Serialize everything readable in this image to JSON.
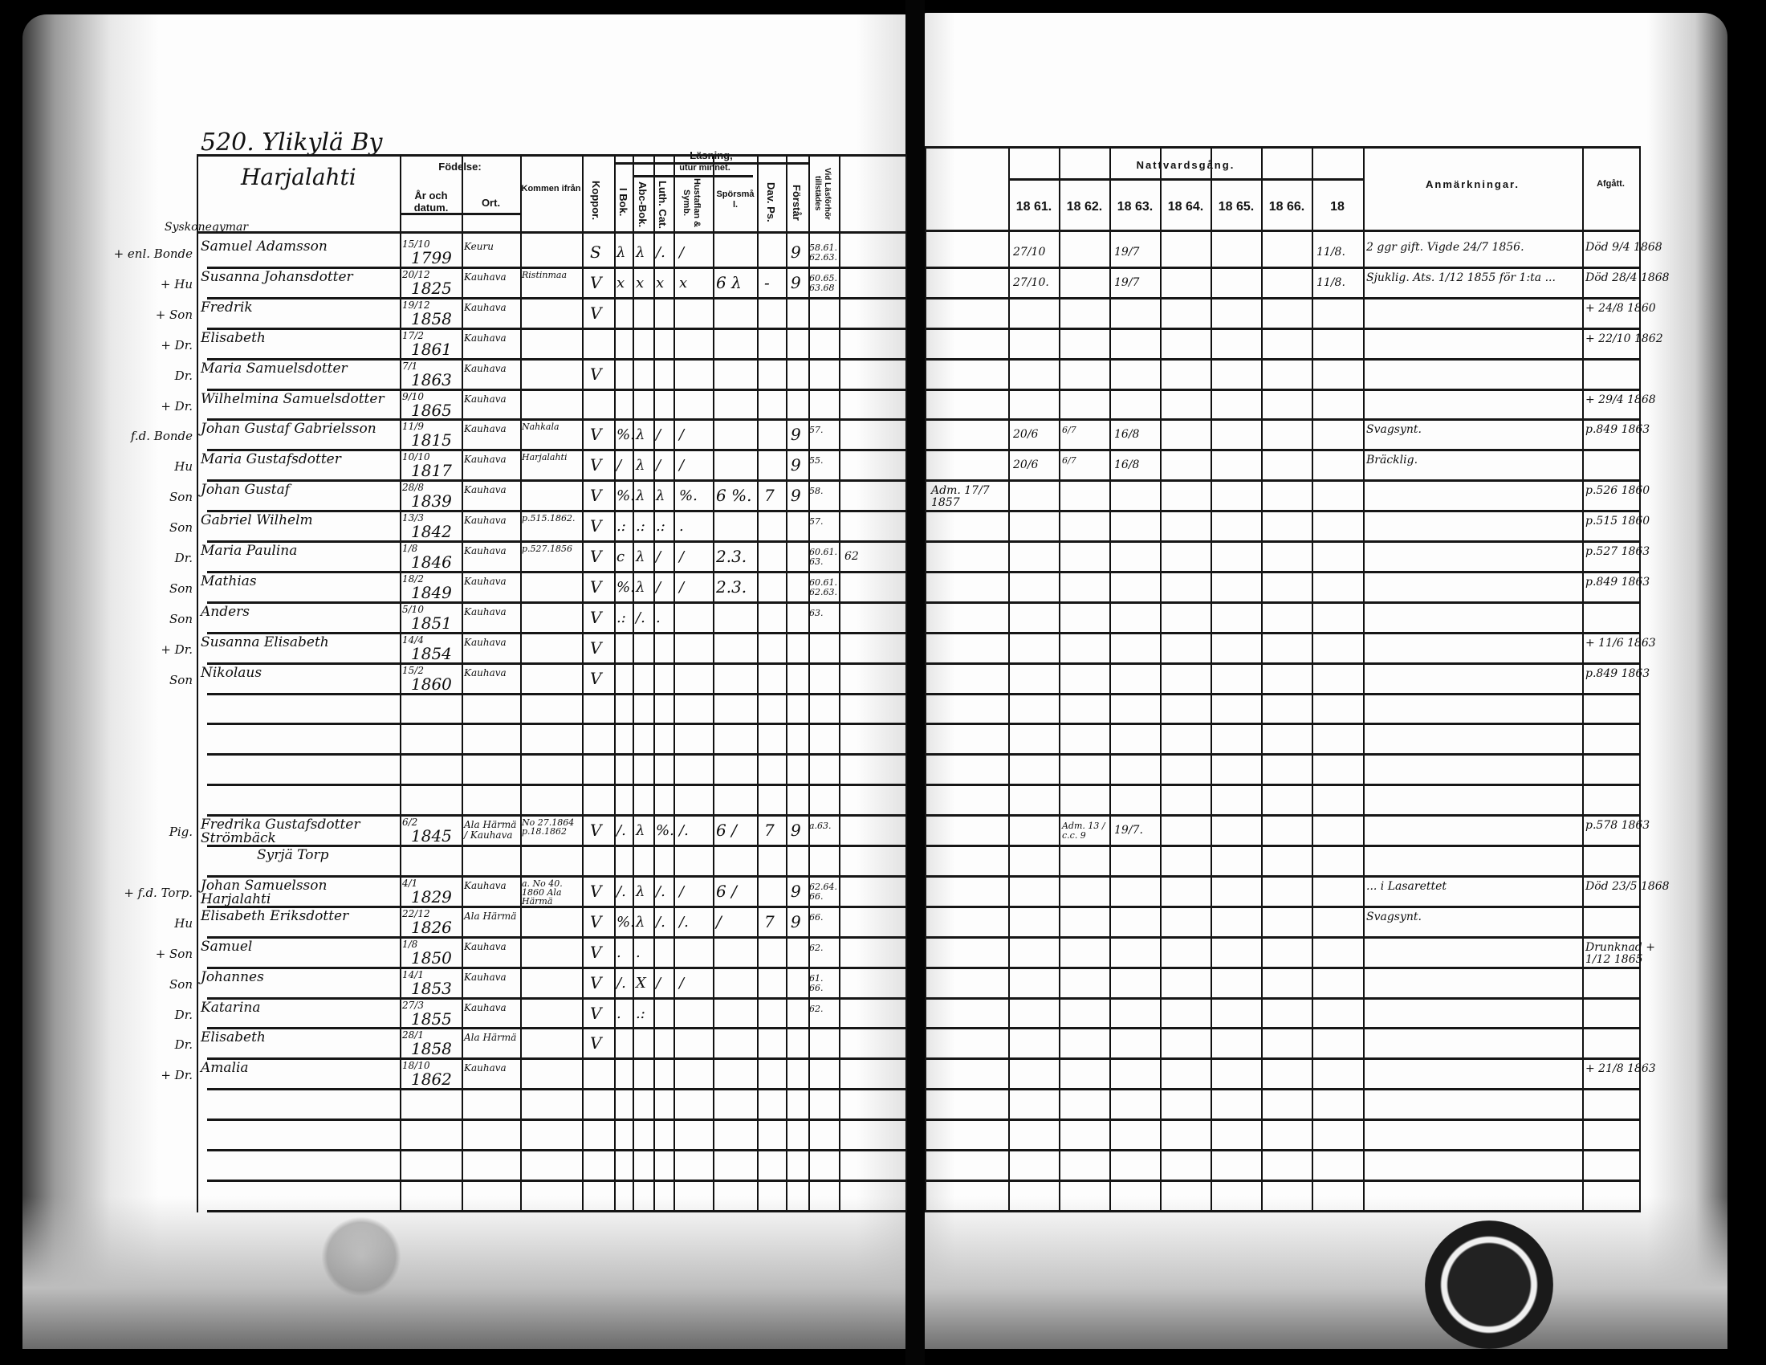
{
  "left": {
    "title": "520. Ylikylä By",
    "village": "Harjalahti",
    "section_heading": "Syskonegymar",
    "headers": {
      "fodelse": "Födelse:",
      "ar_datum": "År och datum.",
      "ort": "Ort.",
      "kommen": "Kommen ifrån",
      "koppor": "Koppor.",
      "lasning": "Läsning,",
      "utur_minnet": "utur minnet.",
      "i_bok": "I Bok.",
      "abc_bok": "Abc-Bok.",
      "luth_cat": "Luth. Cat.",
      "hustaflan": "Hustaflan & Symb.",
      "sporsmal": "Spörsmål.",
      "dav_ps": "Dav. Ps.",
      "forstar": "Förstår",
      "lasforhor": "Vid Läsförhör tillstädes"
    },
    "rows": [
      {
        "rel": "+ enl. Bonde",
        "name": "Samuel Adamsson",
        "date": "15/10",
        "year": "1799",
        "place": "Keuru",
        "kop": "S",
        "ibok": "λ",
        "abc": "λ",
        "luth": "/.",
        "husf": "/",
        "forst": "9",
        "lasf": "58.61. 62.63."
      },
      {
        "rel": "+ Hu",
        "name": "Susanna Johansdotter",
        "date": "20/12",
        "year": "1825",
        "place": "Kauhava",
        "from": "Ristinmaa",
        "kop": "V",
        "ibok": "x",
        "abc": "x",
        "luth": "x",
        "husf": "x",
        "spors": "6 λ",
        "dav": "-",
        "forst": "9",
        "lasf": "60.65. 63.68"
      },
      {
        "rel": "+ Son",
        "name": "Fredrik",
        "date": "19/12",
        "year": "1858",
        "place": "Kauhava",
        "kop": "V"
      },
      {
        "rel": "+ Dr.",
        "name": "Elisabeth",
        "date": "17/2",
        "year": "1861",
        "place": "Kauhava"
      },
      {
        "rel": "Dr.",
        "name": "Maria Samuelsdotter",
        "date": "7/1",
        "year": "1863",
        "place": "Kauhava",
        "kop": "V"
      },
      {
        "rel": "+ Dr.",
        "name": "Wilhelmina Samuelsdotter",
        "date": "9/10",
        "year": "1865",
        "place": "Kauhava"
      },
      {
        "rel": "f.d. Bonde",
        "name": "Johan Gustaf Gabrielsson",
        "date": "11/9",
        "year": "1815",
        "place": "Kauhava",
        "from": "Nahkala",
        "kop": "V",
        "ibok": "%.",
        "abc": "λ",
        "luth": "/",
        "husf": "/",
        "forst": "9",
        "lasf": "57."
      },
      {
        "rel": "Hu",
        "name": "Maria Gustafsdotter",
        "date": "10/10",
        "year": "1817",
        "place": "Kauhava",
        "from": "Harjalahti",
        "kop": "V",
        "ibok": "/",
        "abc": "λ",
        "luth": "/",
        "husf": "/",
        "forst": "9",
        "lasf": "55."
      },
      {
        "rel": "Son",
        "name": "Johan Gustaf",
        "date": "28/8",
        "year": "1839",
        "place": "Kauhava",
        "kop": "V",
        "ibok": "%.",
        "abc": "λ",
        "luth": "λ",
        "husf": "%.",
        "spors": "6 %.",
        "dav": "7",
        "forst": "9",
        "lasf": "58.",
        "extra": ""
      },
      {
        "rel": "Son",
        "name": "Gabriel Wilhelm",
        "date": "13/3",
        "year": "1842",
        "place": "Kauhava",
        "from": "p.515.1862.",
        "kop": "V",
        "ibok": ".:",
        "abc": ".:",
        "luth": ".:",
        "husf": ".",
        "lasf": "57."
      },
      {
        "rel": "Dr.",
        "name": "Maria Paulina",
        "date": "1/8",
        "year": "1846",
        "place": "Kauhava",
        "from": "p.527.1856",
        "kop": "V",
        "ibok": "c",
        "abc": "λ",
        "luth": "/",
        "husf": "/",
        "spors": "2.3.",
        "lasf": "60.61. 63.",
        "extra": "62"
      },
      {
        "rel": "Son",
        "name": "Mathias",
        "date": "18/2",
        "year": "1849",
        "place": "Kauhava",
        "kop": "V",
        "ibok": "%.",
        "abc": "λ",
        "luth": "/",
        "husf": "/",
        "spors": "2.3.",
        "lasf": "60.61. 62.63."
      },
      {
        "rel": "Son",
        "name": "Anders",
        "date": "5/10",
        "year": "1851",
        "place": "Kauhava",
        "kop": "V",
        "ibok": ".:",
        "abc": "/.",
        "luth": ".",
        "lasf": "63."
      },
      {
        "rel": "+ Dr.",
        "name": "Susanna Elisabeth",
        "date": "14/4",
        "year": "1854",
        "place": "Kauhava",
        "kop": "V"
      },
      {
        "rel": "Son",
        "name": "Nikolaus",
        "date": "15/2",
        "year": "1860",
        "place": "Kauhava",
        "kop": "V"
      },
      {},
      {},
      {},
      {},
      {
        "rel": "Pig.",
        "name": "Fredrika Gustafsdotter Strömbäck",
        "date": "6/2",
        "year": "1845",
        "place": "Ala Härmä / Kauhava",
        "from": "No 27.1864 p.18.1862",
        "kop": "V",
        "ibok": "/.",
        "abc": "λ",
        "luth": "%.",
        "husf": "/.",
        "spors": "6 /",
        "dav": "7",
        "forst": "9",
        "lasf": "a.63."
      },
      {
        "name": "Syrjä Torp"
      },
      {
        "rel": "+ f.d. Torp.",
        "name": "Johan Samuelsson Harjalahti",
        "date": "4/1",
        "year": "1829",
        "place": "Kauhava",
        "from": "a. No 40. 1860 Ala Härmä",
        "kop": "V",
        "ibok": "/.",
        "abc": "λ",
        "luth": "/.",
        "husf": "/",
        "spors": "6 /",
        "forst": "9",
        "lasf": "62.64. 66."
      },
      {
        "rel": "Hu",
        "name": "Elisabeth Eriksdotter",
        "date": "22/12",
        "year": "1826",
        "place": "Ala Härmä",
        "kop": "V",
        "ibok": "%.",
        "abc": "λ",
        "luth": "/.",
        "husf": "/.",
        "spors": "/",
        "dav": "7",
        "forst": "9",
        "lasf": "66."
      },
      {
        "rel": "+ Son",
        "name": "Samuel",
        "date": "1/8",
        "year": "1850",
        "place": "Kauhava",
        "kop": "V",
        "ibok": ".",
        "abc": ".",
        "lasf": "62."
      },
      {
        "rel": "Son",
        "name": "Johannes",
        "date": "14/1",
        "year": "1853",
        "place": "Kauhava",
        "kop": "V",
        "ibok": "/.",
        "abc": "X",
        "luth": "/",
        "husf": "/",
        "lasf": "61. 66."
      },
      {
        "rel": "Dr.",
        "name": "Katarina",
        "date": "27/3",
        "year": "1855",
        "place": "Kauhava",
        "kop": "V",
        "ibok": ".",
        "abc": ".:",
        "lasf": "62."
      },
      {
        "rel": "Dr.",
        "name": "Elisabeth",
        "date": "28/1",
        "year": "1858",
        "place": "Ala Härmä",
        "kop": "V"
      },
      {
        "rel": "+ Dr.",
        "name": "Amalia",
        "date": "18/10",
        "year": "1862",
        "place": "Kauhava"
      },
      {},
      {},
      {},
      {}
    ]
  },
  "right": {
    "headers": {
      "nattvardsgang": "Nattvardsgång.",
      "years": [
        "18 61.",
        "18 62.",
        "18 63.",
        "18 64.",
        "18 65.",
        "18 66.",
        "18"
      ],
      "anmarkningar": "Anmärkningar.",
      "afgatt": "Afgått."
    },
    "rows": [
      {
        "y61": "27/10",
        "y63": "19/7",
        "y18": "11/8.",
        "remark": "2 ggr gift.  Vigde 24/7 1856.",
        "afgatt": "Död 9/4 1868"
      },
      {
        "y61": "27/10.",
        "y63": "19/7",
        "y18": "11/8.",
        "remark": "Sjuklig. Ats. 1/12 1855 för 1:ta ...",
        "afgatt": "Död 28/4 1868"
      },
      {
        "afgatt": "+ 24/8 1860"
      },
      {
        "afgatt": "+ 22/10 1862"
      },
      {},
      {
        "afgatt": "+ 29/4 1868"
      },
      {
        "y61": "20/6",
        "y62": "6/7",
        "y63": "16/8",
        "remark": "Svagsynt.",
        "afgatt": "p.849 1863"
      },
      {
        "y61": "20/6",
        "y62": "6/7",
        "y63": "16/8",
        "remark": "Bräcklig."
      },
      {
        "adm": "Adm. 17/7 1857",
        "afgatt": "p.526 1860"
      },
      {
        "afgatt": "p.515 1860"
      },
      {
        "afgatt": "p.527 1863"
      },
      {
        "afgatt": "p.849 1863"
      },
      {},
      {
        "afgatt": "+ 11/6 1863"
      },
      {
        "afgatt": "p.849 1863"
      },
      {},
      {},
      {},
      {},
      {
        "y62": "Adm. 13 / c.c. 9",
        "y63": "19/7.",
        "afgatt": "p.578 1863"
      },
      {},
      {
        "remark": "... i Lasarettet",
        "afgatt": "Död 23/5 1868"
      },
      {
        "remark": "Svagsynt."
      },
      {
        "afgatt": "Drunknad + 1/12 1865"
      },
      {},
      {},
      {},
      {
        "afgatt": "+ 21/8 1863"
      },
      {},
      {},
      {},
      {}
    ]
  }
}
